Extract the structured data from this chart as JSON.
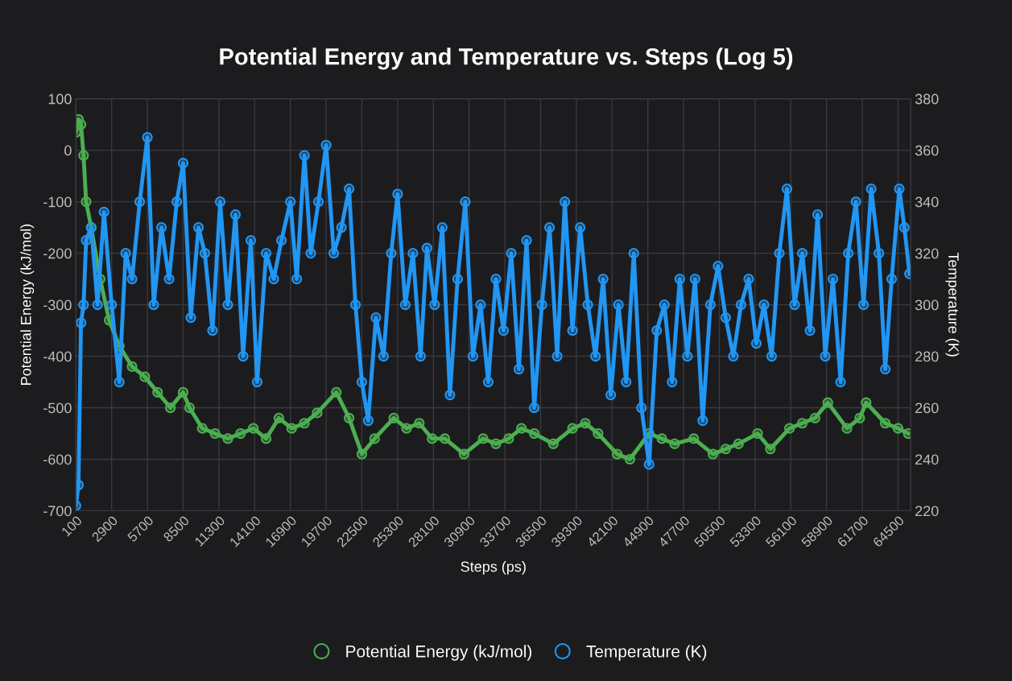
{
  "chart_data": {
    "type": "line",
    "title": "Potential Energy and Temperature vs. Steps (Log 5)",
    "xlabel": "Steps (ps)",
    "ylabel": "Potential Energy (kJ/mol)",
    "y2label": "Temperature (K)",
    "xlim": [
      100,
      65500
    ],
    "xticks": [
      100,
      2900,
      5700,
      8500,
      11300,
      14100,
      16900,
      19700,
      22500,
      25300,
      28100,
      30900,
      33700,
      36500,
      39300,
      42100,
      44900,
      47700,
      50500,
      53300,
      56100,
      58900,
      61700,
      64500
    ],
    "ylim": [
      -700,
      100
    ],
    "yticks": [
      -700,
      -600,
      -500,
      -400,
      -300,
      -200,
      -100,
      0,
      100
    ],
    "y2lim": [
      220,
      380
    ],
    "y2ticks": [
      220,
      240,
      260,
      280,
      300,
      320,
      340,
      360,
      380
    ],
    "grid": true,
    "legend": "bottom",
    "marker": "circle",
    "line_style": "solid",
    "series": [
      {
        "name": "Potential Energy (kJ/mol)",
        "color": "#4caf50",
        "x": [
          100,
          300,
          500,
          700,
          900,
          1300,
          2000,
          2700,
          3500,
          4500,
          5500,
          6500,
          7500,
          8500,
          9000,
          10000,
          11000,
          12000,
          13000,
          14000,
          15000,
          16000,
          17000,
          18000,
          19000,
          20500,
          21500,
          22500,
          23500,
          25000,
          26000,
          27000,
          28000,
          29000,
          30500,
          32000,
          33000,
          34000,
          35000,
          36000,
          37500,
          39000,
          40000,
          41000,
          42500,
          43500,
          45000,
          46000,
          47000,
          48500,
          50000,
          51000,
          52000,
          53500,
          54500,
          56000,
          57000,
          58000,
          59000,
          60500,
          61500,
          62000,
          63500,
          64500,
          65300
        ],
        "values": [
          35,
          60,
          50,
          -10,
          -100,
          -150,
          -250,
          -330,
          -380,
          -420,
          -440,
          -470,
          -500,
          -470,
          -500,
          -540,
          -550,
          -560,
          -550,
          -540,
          -560,
          -520,
          -540,
          -530,
          -510,
          -470,
          -520,
          -590,
          -560,
          -520,
          -540,
          -530,
          -560,
          -560,
          -590,
          -560,
          -570,
          -560,
          -540,
          -550,
          -570,
          -540,
          -530,
          -550,
          -590,
          -600,
          -550,
          -560,
          -570,
          -560,
          -590,
          -580,
          -570,
          -550,
          -580,
          -540,
          -530,
          -520,
          -490,
          -540,
          -520,
          -490,
          -530,
          -540,
          -550
        ]
      },
      {
        "name": "Temperature (K)",
        "color": "#2196f3",
        "axis": "y2",
        "x": [
          100,
          300,
          500,
          700,
          900,
          1300,
          1800,
          2300,
          2900,
          3500,
          4000,
          4500,
          5100,
          5700,
          6200,
          6800,
          7400,
          8000,
          8500,
          9100,
          9700,
          10200,
          10800,
          11400,
          12000,
          12600,
          13200,
          13800,
          14300,
          15000,
          15600,
          16200,
          16900,
          17400,
          18000,
          18500,
          19100,
          19700,
          20300,
          20900,
          21500,
          22000,
          22500,
          23000,
          23600,
          24200,
          24800,
          25300,
          25900,
          26500,
          27100,
          27600,
          28200,
          28800,
          29400,
          30000,
          30600,
          31200,
          31800,
          32400,
          33000,
          33600,
          34200,
          34800,
          35400,
          36000,
          36600,
          37200,
          37800,
          38400,
          39000,
          39600,
          40200,
          40800,
          41400,
          42000,
          42600,
          43200,
          43800,
          44400,
          45000,
          45600,
          46200,
          46800,
          47400,
          48000,
          48600,
          49200,
          49800,
          50400,
          51000,
          51600,
          52200,
          52800,
          53400,
          54000,
          54600,
          55200,
          55800,
          56400,
          57000,
          57600,
          58200,
          58800,
          59400,
          60000,
          60600,
          61200,
          61800,
          62400,
          63000,
          63500,
          64000,
          64600,
          65000,
          65400
        ],
        "values": [
          222,
          230,
          293,
          300,
          325,
          330,
          300,
          336,
          300,
          270,
          320,
          310,
          340,
          365,
          300,
          330,
          310,
          340,
          355,
          295,
          330,
          320,
          290,
          340,
          300,
          335,
          280,
          325,
          270,
          320,
          310,
          325,
          340,
          310,
          358,
          320,
          340,
          362,
          320,
          330,
          345,
          300,
          270,
          255,
          295,
          280,
          320,
          343,
          300,
          320,
          280,
          322,
          300,
          330,
          265,
          310,
          340,
          280,
          300,
          270,
          310,
          290,
          320,
          275,
          325,
          260,
          300,
          330,
          280,
          340,
          290,
          330,
          300,
          280,
          310,
          265,
          300,
          270,
          320,
          260,
          238,
          290,
          300,
          270,
          310,
          280,
          310,
          255,
          300,
          315,
          295,
          280,
          300,
          310,
          285,
          300,
          280,
          320,
          345,
          300,
          320,
          290,
          335,
          280,
          310,
          270,
          320,
          340,
          300,
          345,
          320,
          275,
          310,
          345,
          330,
          312
        ]
      }
    ]
  }
}
